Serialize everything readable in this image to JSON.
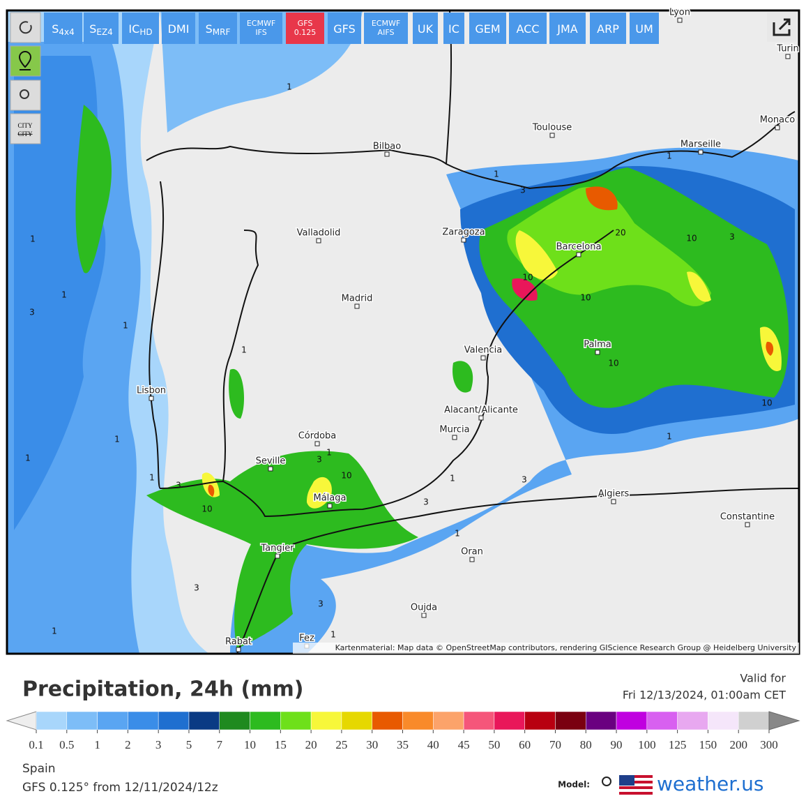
{
  "toolbar": {
    "buttons": [
      {
        "main": "S",
        "sub": "4x4"
      },
      {
        "main": "S",
        "sub": "EZ4"
      },
      {
        "main": "IC",
        "sub": "HD"
      },
      {
        "main": "DMI"
      },
      {
        "main": "S",
        "sub": "MRF"
      },
      {
        "line1": "ECMWF",
        "line2": "IFS"
      },
      {
        "line1": "GFS",
        "line2": "0.125",
        "active": true
      },
      {
        "main": "GFS"
      },
      {
        "line1": "ECMWF",
        "line2": "AIFS"
      },
      {
        "main": "UK"
      },
      {
        "main": "IC"
      },
      {
        "main": "GEM"
      },
      {
        "main": "ACC"
      },
      {
        "main": "JMA"
      },
      {
        "main": "ARP"
      },
      {
        "main": "UM"
      }
    ]
  },
  "sidebar": {
    "city_toggle": [
      "CITY",
      "CITY"
    ]
  },
  "map": {
    "cities": [
      "Lyon",
      "Turin",
      "Monaco",
      "Toulouse",
      "Marseille",
      "Bilbao",
      "Zaragoza",
      "Barcelona",
      "Valladolid",
      "Madrid",
      "Palma",
      "Valencia",
      "Lisbon",
      "Alacant/Alicante",
      "Murcia",
      "Córdoba",
      "Seville",
      "Málaga",
      "Algiers",
      "Constantine",
      "Tangier",
      "Oran",
      "Oujda",
      "Rabat",
      "Fez"
    ],
    "contour_labels": [
      1,
      1,
      1,
      1,
      1,
      1,
      1,
      1,
      1,
      1,
      1,
      1,
      1,
      1,
      1,
      1,
      3,
      3,
      3,
      3,
      3,
      3,
      3,
      3,
      3,
      10,
      10,
      10,
      10,
      10,
      10,
      10,
      20
    ],
    "attribution": "Kartenmaterial: Map data © OpenStreetMap contributors, rendering GIScience Research Group @ Heidelberg University"
  },
  "legend": {
    "title": "Precipitation, 24h (mm)",
    "valid_label": "Valid for",
    "valid_time": "Fri 12/13/2024, 01:00am CET",
    "colors": [
      "#a8d6fb",
      "#7dbdf7",
      "#5aa5f2",
      "#3a8de8",
      "#1f6fd0",
      "#0a3a84",
      "#1f8a1f",
      "#2dbb1f",
      "#6ee01a",
      "#f7f73a",
      "#e6d800",
      "#e85a00",
      "#f98a2a",
      "#fca36a",
      "#f5567a",
      "#e9175a",
      "#b80010",
      "#7a0010",
      "#6a0080",
      "#c000e0",
      "#d860f0",
      "#e8a8f0",
      "#f5e6fa",
      "#d0d0d0"
    ],
    "ticks": [
      0.1,
      0.5,
      1,
      2,
      3,
      5,
      7,
      10,
      15,
      20,
      25,
      30,
      35,
      40,
      45,
      50,
      60,
      70,
      80,
      90,
      100,
      125,
      150,
      200,
      300
    ],
    "region": "Spain",
    "model_run": "GFS 0.125° from 12/11/2024/12z",
    "model_label": "Model:",
    "brand": "weather.us"
  }
}
